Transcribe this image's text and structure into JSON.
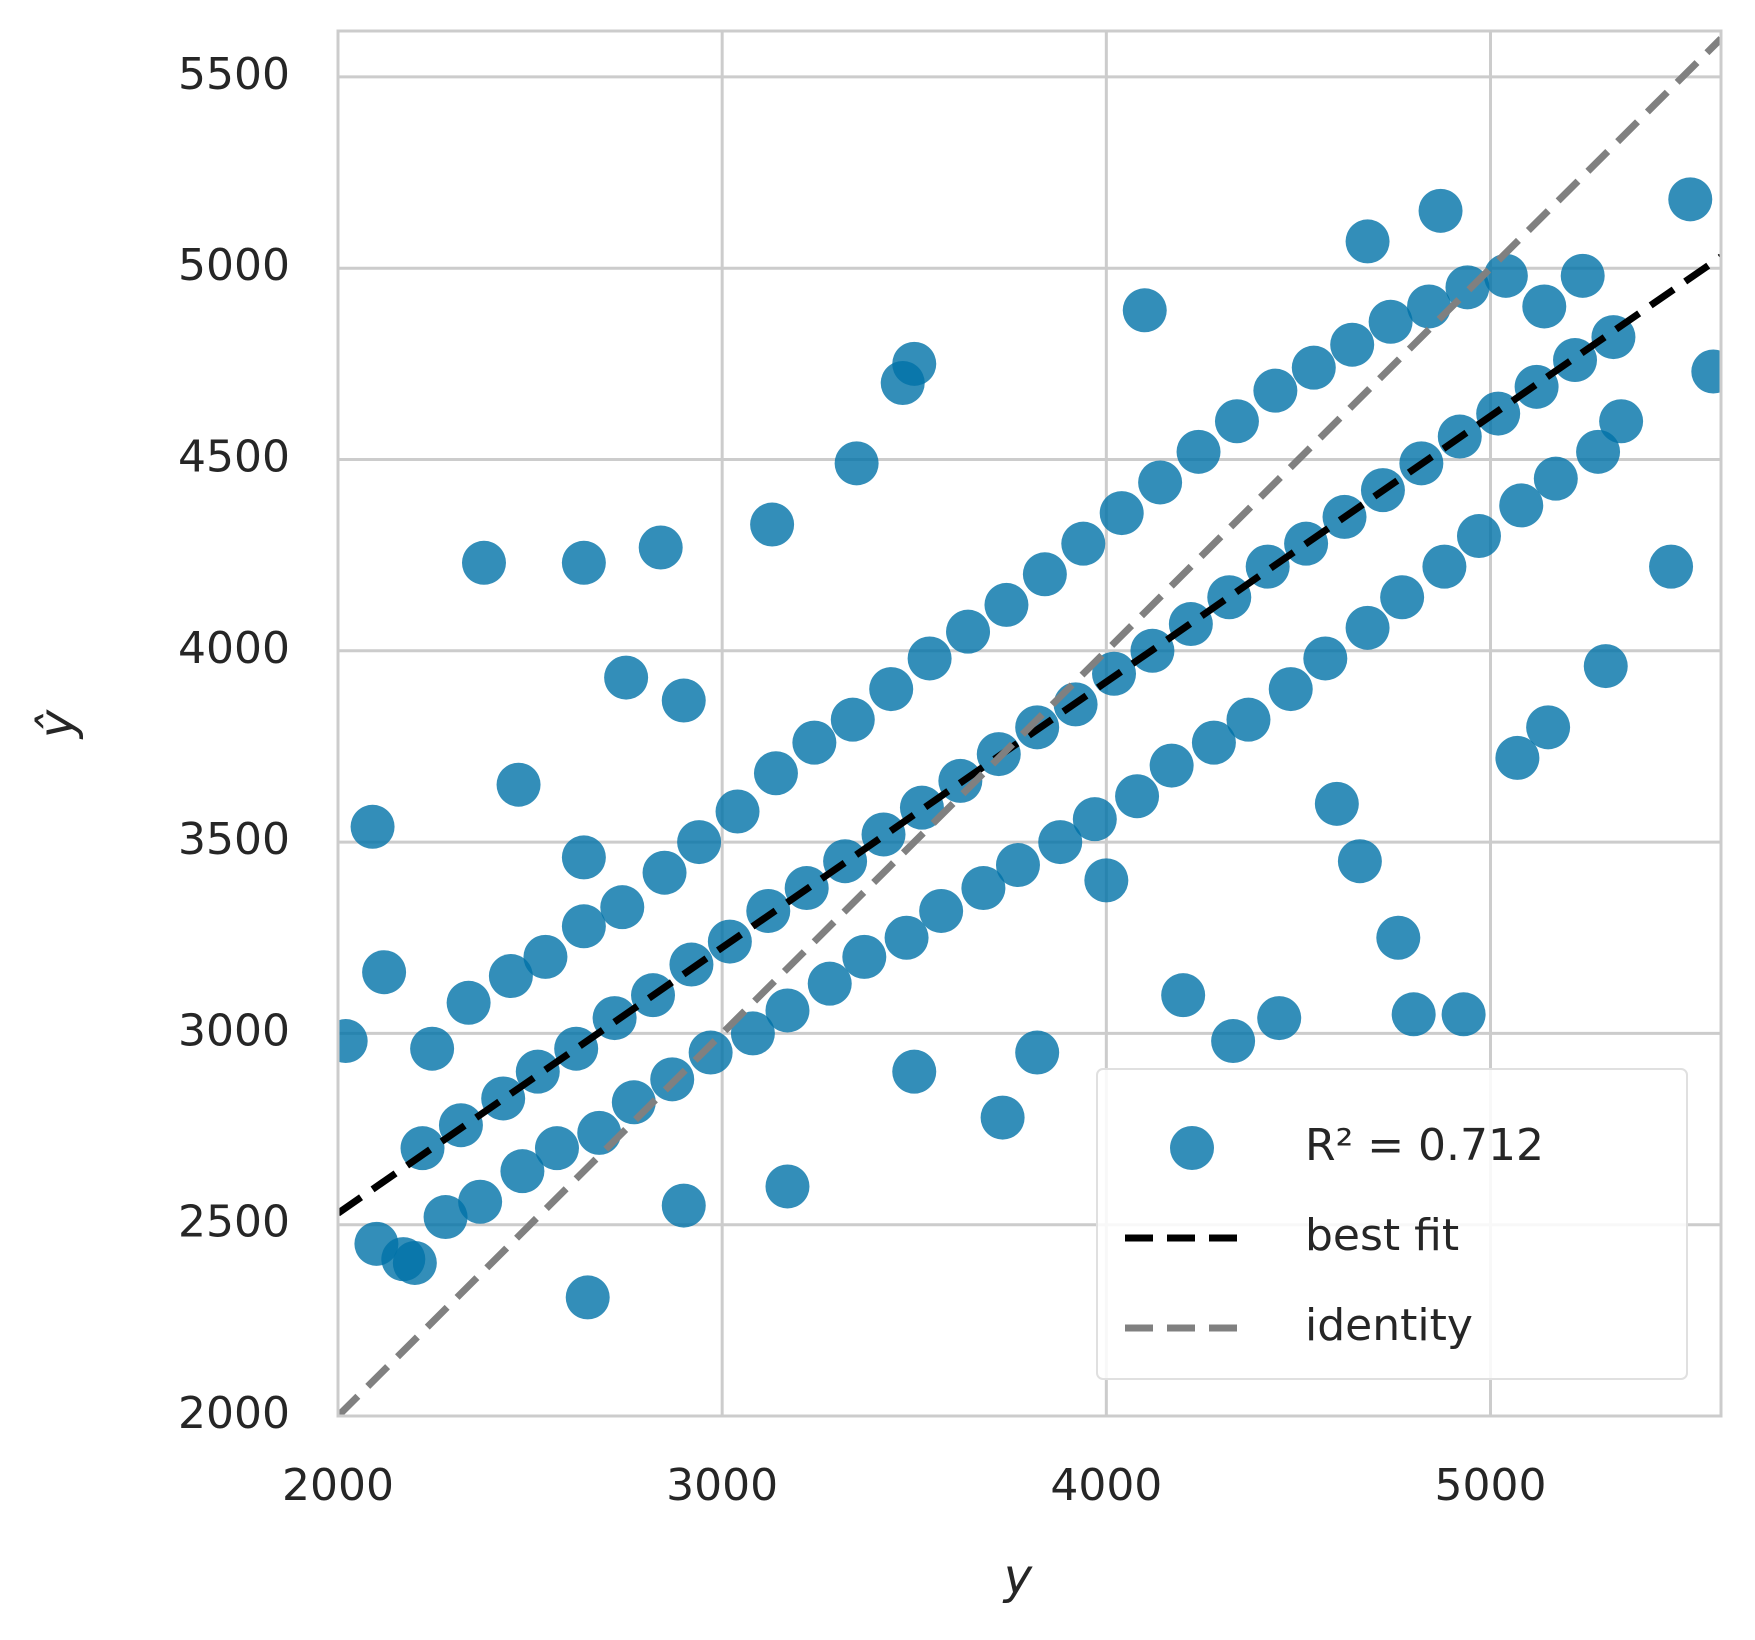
{
  "chart_data": {
    "type": "scatter",
    "xlabel": "y",
    "ylabel": "ŷ",
    "xlim": [
      2000,
      5600
    ],
    "ylim": [
      2000,
      5620
    ],
    "xticks": [
      2000,
      3000,
      4000,
      5000
    ],
    "yticks": [
      2000,
      2500,
      3000,
      3500,
      4000,
      4500,
      5000,
      5500
    ],
    "grid": true,
    "legend": "lower right",
    "series": [
      {
        "name": "R² = 0.712",
        "color": "#0072a8",
        "kind": "points",
        "x": [
          2380,
          2640,
          2840,
          3130,
          2090,
          2470,
          2020,
          2120,
          2650,
          3170,
          3730,
          4100,
          4680,
          4870,
          5520,
          5580,
          4930,
          4450,
          4330,
          5070,
          5150,
          5300,
          5470,
          3470,
          3500,
          3350,
          2750,
          2900,
          2640,
          3820,
          3500,
          2900,
          2200,
          2100,
          4800,
          4760,
          4600,
          4660,
          4200,
          4000,
          2170,
          2220,
          2245,
          2280,
          2320,
          2340,
          2370,
          2430,
          2450,
          2480,
          2520,
          2540,
          2570,
          2620,
          2640,
          2680,
          2720,
          2740,
          2770,
          2820,
          2850,
          2870,
          2920,
          2940,
          2970,
          3020,
          3040,
          3080,
          3120,
          3140,
          3170,
          3220,
          3240,
          3280,
          3320,
          3340,
          3370,
          3420,
          3440,
          3480,
          3520,
          3540,
          3570,
          3620,
          3640,
          3680,
          3720,
          3740,
          3770,
          3820,
          3840,
          3880,
          3920,
          3940,
          3970,
          4020,
          4040,
          4080,
          4120,
          4140,
          4170,
          4220,
          4240,
          4280,
          4320,
          4340,
          4370,
          4420,
          4440,
          4480,
          4520,
          4540,
          4570,
          4620,
          4640,
          4680,
          4720,
          4740,
          4770,
          4820,
          4840,
          4880,
          4920,
          4940,
          4970,
          5020,
          5040,
          5080,
          5120,
          5140,
          5170,
          5220,
          5240,
          5280,
          5320,
          5340
        ],
        "y": [
          4230,
          4230,
          4270,
          4330,
          3540,
          3650,
          2980,
          3160,
          2310,
          2600,
          2780,
          4890,
          5070,
          5150,
          5180,
          4730,
          3050,
          3040,
          2980,
          3720,
          3800,
          3960,
          4220,
          4700,
          4750,
          4490,
          3930,
          3870,
          3460,
          2950,
          2900,
          2550,
          2400,
          2450,
          3050,
          3250,
          3600,
          3450,
          3100,
          3400,
          2410,
          2700,
          2960,
          2520,
          2760,
          3080,
          2560,
          2830,
          3150,
          2640,
          2900,
          3200,
          2700,
          2960,
          3280,
          2740,
          3040,
          3330,
          2820,
          3100,
          3420,
          2880,
          3180,
          3500,
          2950,
          3240,
          3580,
          3000,
          3320,
          3680,
          3060,
          3380,
          3760,
          3130,
          3450,
          3820,
          3200,
          3520,
          3900,
          3250,
          3590,
          3980,
          3320,
          3660,
          4050,
          3380,
          3730,
          4120,
          3440,
          3800,
          4200,
          3500,
          3860,
          4280,
          3560,
          3940,
          4360,
          3620,
          4000,
          4440,
          3700,
          4070,
          4520,
          3760,
          4140,
          4600,
          3820,
          4220,
          4680,
          3900,
          4280,
          4740,
          3980,
          4350,
          4800,
          4060,
          4420,
          4860,
          4140,
          4490,
          4900,
          4220,
          4560,
          4950,
          4300,
          4620,
          4980,
          4380,
          4690,
          4900,
          4450,
          4760,
          4980,
          4520,
          4820,
          4600
        ]
      },
      {
        "name": "best fit",
        "color": "#000000",
        "kind": "dashed-line",
        "x": [
          2000,
          5600
        ],
        "y": [
          2530,
          5030
        ]
      },
      {
        "name": "identity",
        "color": "#808080",
        "kind": "dashed-line",
        "x": [
          2000,
          5600
        ],
        "y": [
          2000,
          5600
        ]
      }
    ]
  }
}
